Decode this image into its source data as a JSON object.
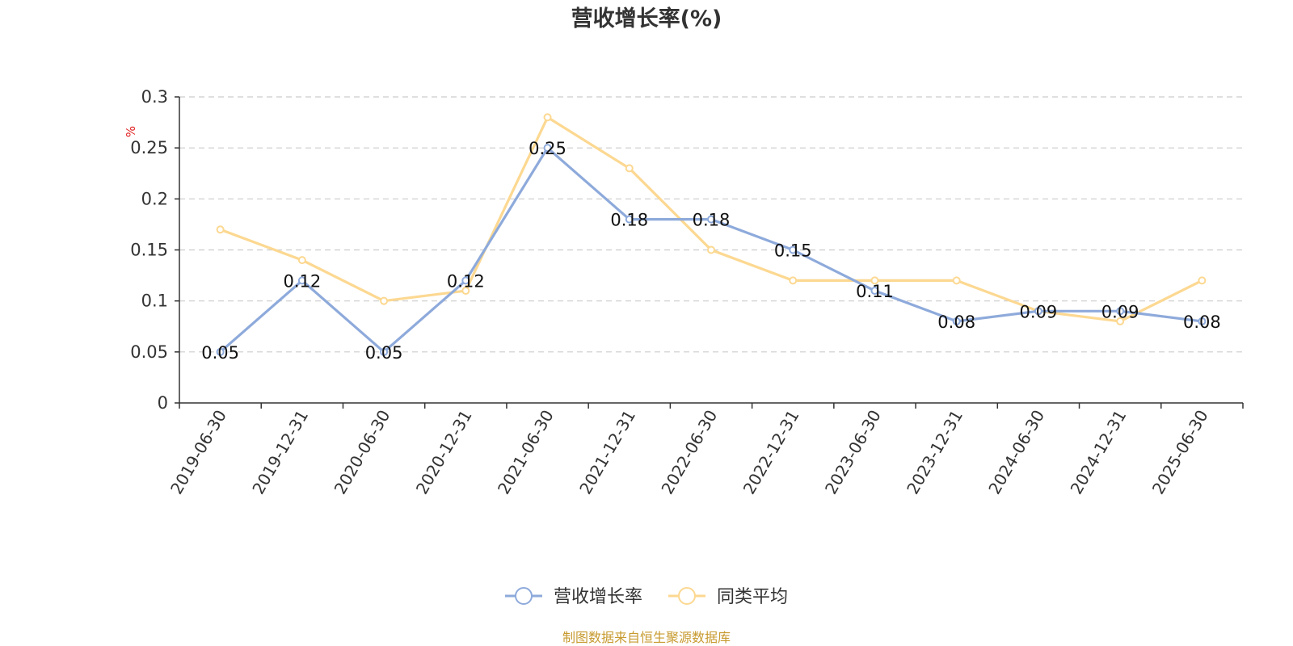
{
  "title": "营收增长率(%)",
  "source": "制图数据来自恒生聚源数据库",
  "chart_data": {
    "type": "line",
    "title": "营收增长率(%)",
    "ylabel": "%",
    "xlabel": "",
    "ylim": [
      0,
      0.3
    ],
    "yticks": [
      "0",
      "0.05",
      "0.1",
      "0.15",
      "0.2",
      "0.25",
      "0.3"
    ],
    "grid": true,
    "legend_position": "bottom",
    "categories": [
      "2019-06-30",
      "2019-12-31",
      "2020-06-30",
      "2020-12-31",
      "2021-06-30",
      "2021-12-31",
      "2022-06-30",
      "2022-12-31",
      "2023-06-30",
      "2023-12-31",
      "2024-06-30",
      "2024-12-31",
      "2025-06-30"
    ],
    "series": [
      {
        "name": "营收增长率",
        "color": "#8eaadb",
        "values": [
          0.05,
          0.12,
          0.05,
          0.12,
          0.25,
          0.18,
          0.18,
          0.15,
          0.11,
          0.08,
          0.09,
          0.09,
          0.08
        ],
        "labels": [
          "0.05",
          "0.12",
          "0.05",
          "0.12",
          "0.25",
          "0.18",
          "0.18",
          "0.15",
          "0.11",
          "0.08",
          "0.09",
          "0.09",
          "0.08"
        ]
      },
      {
        "name": "同类平均",
        "color": "#fcd891",
        "values": [
          0.17,
          0.14,
          0.1,
          0.11,
          0.28,
          0.23,
          0.15,
          0.12,
          0.12,
          0.12,
          0.09,
          0.08,
          0.12
        ]
      }
    ]
  }
}
